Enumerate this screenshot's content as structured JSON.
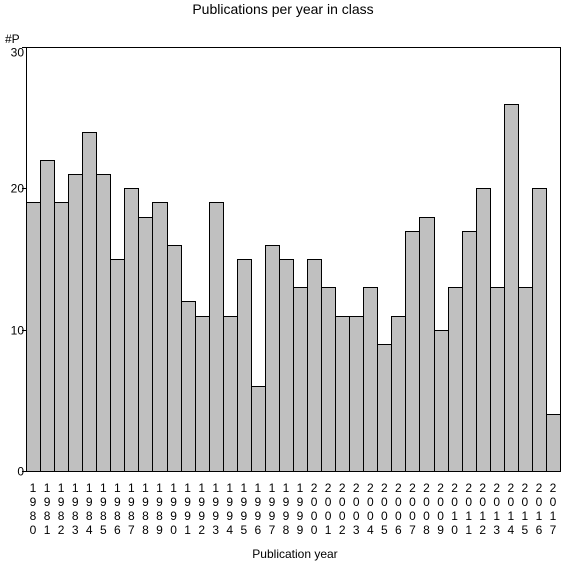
{
  "chart_data": {
    "type": "bar",
    "title": "Publications per year in class",
    "ylabel": "#P",
    "xlabel": "Publication year",
    "ylim": [
      0,
      30
    ],
    "yticks": [
      0,
      10,
      20,
      30
    ],
    "grid": false,
    "legend": "none",
    "bar_color": "#c0c0c0",
    "categories": [
      "1980",
      "1981",
      "1982",
      "1983",
      "1984",
      "1985",
      "1986",
      "1987",
      "1988",
      "1989",
      "1990",
      "1991",
      "1992",
      "1993",
      "1994",
      "1995",
      "1996",
      "1997",
      "1998",
      "1999",
      "2000",
      "2001",
      "2002",
      "2003",
      "2004",
      "2005",
      "2006",
      "2007",
      "2008",
      "2009",
      "2010",
      "2011",
      "2012",
      "2013",
      "2014",
      "2015",
      "2016",
      "2017"
    ],
    "values": [
      19,
      22,
      19,
      21,
      24,
      21,
      15,
      20,
      18,
      19,
      16,
      12,
      11,
      19,
      11,
      15,
      6,
      16,
      15,
      13,
      15,
      13,
      11,
      11,
      13,
      9,
      11,
      17,
      18,
      10,
      13,
      17,
      20,
      13,
      26,
      13,
      20,
      4
    ]
  }
}
